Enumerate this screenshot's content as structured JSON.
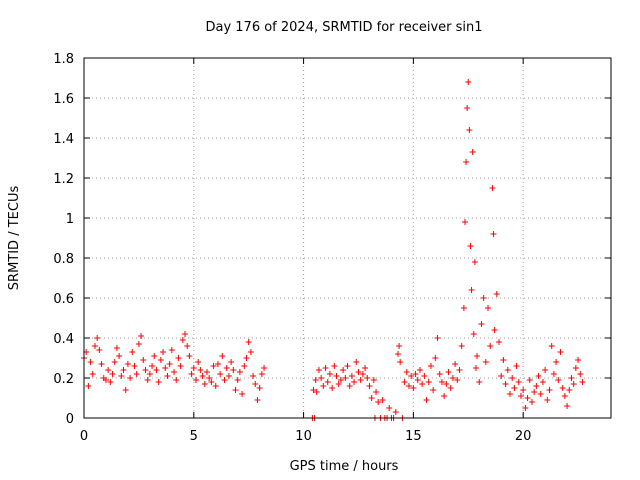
{
  "chart_data": {
    "type": "scatter",
    "title": "Day 176 of 2024, SRMTID for receiver sin1",
    "xlabel": "GPS time / hours",
    "ylabel": "SRMTID / TECUs",
    "xlim": [
      0,
      24
    ],
    "ylim": [
      0,
      1.8
    ],
    "xticks": [
      0,
      5,
      10,
      15,
      20
    ],
    "xtick_labels": [
      "0",
      "5",
      "10",
      "15",
      "20"
    ],
    "yticks": [
      0,
      0.2,
      0.4,
      0.6,
      0.8,
      1.0,
      1.2,
      1.4,
      1.6,
      1.8
    ],
    "ytick_labels": [
      "0",
      "0.2",
      "0.4",
      "0.6",
      "0.8",
      "1",
      "1.2",
      "1.4",
      "1.6",
      "1.8"
    ],
    "grid": true,
    "marker": "+",
    "color": "#ff0000",
    "series": [
      {
        "name": "sin1",
        "points": [
          [
            0.0,
            0.3
          ],
          [
            0.1,
            0.33
          ],
          [
            0.2,
            0.16
          ],
          [
            0.3,
            0.28
          ],
          [
            0.4,
            0.22
          ],
          [
            0.5,
            0.36
          ],
          [
            0.6,
            0.4
          ],
          [
            0.7,
            0.34
          ],
          [
            0.8,
            0.27
          ],
          [
            0.9,
            0.2
          ],
          [
            1.0,
            0.19
          ],
          [
            1.1,
            0.24
          ],
          [
            1.2,
            0.18
          ],
          [
            1.3,
            0.22
          ],
          [
            1.4,
            0.28
          ],
          [
            1.5,
            0.35
          ],
          [
            1.6,
            0.31
          ],
          [
            1.7,
            0.21
          ],
          [
            1.8,
            0.24
          ],
          [
            1.9,
            0.14
          ],
          [
            2.0,
            0.27
          ],
          [
            2.1,
            0.2
          ],
          [
            2.2,
            0.33
          ],
          [
            2.3,
            0.26
          ],
          [
            2.4,
            0.22
          ],
          [
            2.5,
            0.37
          ],
          [
            2.6,
            0.41
          ],
          [
            2.7,
            0.29
          ],
          [
            2.8,
            0.24
          ],
          [
            2.9,
            0.19
          ],
          [
            3.0,
            0.22
          ],
          [
            3.1,
            0.26
          ],
          [
            3.2,
            0.31
          ],
          [
            3.3,
            0.24
          ],
          [
            3.4,
            0.18
          ],
          [
            3.5,
            0.29
          ],
          [
            3.6,
            0.33
          ],
          [
            3.7,
            0.25
          ],
          [
            3.8,
            0.21
          ],
          [
            3.9,
            0.27
          ],
          [
            4.0,
            0.34
          ],
          [
            4.1,
            0.23
          ],
          [
            4.2,
            0.19
          ],
          [
            4.3,
            0.3
          ],
          [
            4.4,
            0.26
          ],
          [
            4.5,
            0.39
          ],
          [
            4.6,
            0.42
          ],
          [
            4.7,
            0.36
          ],
          [
            4.8,
            0.31
          ],
          [
            4.9,
            0.22
          ],
          [
            5.0,
            0.25
          ],
          [
            5.1,
            0.19
          ],
          [
            5.2,
            0.28
          ],
          [
            5.3,
            0.24
          ],
          [
            5.4,
            0.21
          ],
          [
            5.5,
            0.17
          ],
          [
            5.6,
            0.23
          ],
          [
            5.7,
            0.2
          ],
          [
            5.8,
            0.18
          ],
          [
            5.9,
            0.26
          ],
          [
            6.0,
            0.16
          ],
          [
            6.1,
            0.27
          ],
          [
            6.2,
            0.22
          ],
          [
            6.3,
            0.31
          ],
          [
            6.4,
            0.19
          ],
          [
            6.5,
            0.25
          ],
          [
            6.6,
            0.21
          ],
          [
            6.7,
            0.28
          ],
          [
            6.8,
            0.24
          ],
          [
            6.9,
            0.14
          ],
          [
            7.0,
            0.19
          ],
          [
            7.1,
            0.23
          ],
          [
            7.2,
            0.12
          ],
          [
            7.3,
            0.26
          ],
          [
            7.4,
            0.3
          ],
          [
            7.5,
            0.38
          ],
          [
            7.6,
            0.33
          ],
          [
            7.7,
            0.21
          ],
          [
            7.8,
            0.17
          ],
          [
            7.9,
            0.09
          ],
          [
            8.0,
            0.15
          ],
          [
            8.1,
            0.22
          ],
          [
            8.2,
            0.25
          ],
          [
            10.4,
            0.0
          ],
          [
            10.5,
            0.0
          ],
          [
            10.45,
            0.14
          ],
          [
            10.55,
            0.19
          ],
          [
            10.6,
            0.13
          ],
          [
            10.7,
            0.24
          ],
          [
            10.8,
            0.2
          ],
          [
            10.9,
            0.16
          ],
          [
            11.0,
            0.25
          ],
          [
            11.1,
            0.18
          ],
          [
            11.2,
            0.22
          ],
          [
            11.3,
            0.15
          ],
          [
            11.4,
            0.26
          ],
          [
            11.5,
            0.21
          ],
          [
            11.6,
            0.17
          ],
          [
            11.7,
            0.19
          ],
          [
            11.8,
            0.24
          ],
          [
            11.9,
            0.2
          ],
          [
            12.0,
            0.26
          ],
          [
            12.1,
            0.16
          ],
          [
            12.2,
            0.21
          ],
          [
            12.3,
            0.18
          ],
          [
            12.4,
            0.28
          ],
          [
            12.5,
            0.23
          ],
          [
            12.6,
            0.19
          ],
          [
            12.7,
            0.22
          ],
          [
            12.8,
            0.25
          ],
          [
            12.9,
            0.2
          ],
          [
            13.0,
            0.16
          ],
          [
            13.1,
            0.1
          ],
          [
            13.2,
            0.19
          ],
          [
            13.25,
            0.0
          ],
          [
            13.3,
            0.13
          ],
          [
            13.4,
            0.08
          ],
          [
            13.5,
            0.0
          ],
          [
            13.6,
            0.09
          ],
          [
            13.7,
            0.0
          ],
          [
            13.8,
            0.0
          ],
          [
            13.9,
            0.05
          ],
          [
            14.0,
            0.0
          ],
          [
            14.1,
            0.0
          ],
          [
            14.2,
            0.03
          ],
          [
            14.3,
            0.32
          ],
          [
            14.35,
            0.36
          ],
          [
            14.4,
            0.28
          ],
          [
            14.5,
            0.0
          ],
          [
            14.6,
            0.18
          ],
          [
            14.7,
            0.23
          ],
          [
            14.8,
            0.16
          ],
          [
            14.9,
            0.21
          ],
          [
            15.0,
            0.15
          ],
          [
            15.1,
            0.22
          ],
          [
            15.2,
            0.19
          ],
          [
            15.3,
            0.24
          ],
          [
            15.4,
            0.17
          ],
          [
            15.5,
            0.21
          ],
          [
            15.6,
            0.09
          ],
          [
            15.7,
            0.18
          ],
          [
            15.8,
            0.26
          ],
          [
            15.9,
            0.14
          ],
          [
            16.0,
            0.3
          ],
          [
            16.1,
            0.4
          ],
          [
            16.2,
            0.22
          ],
          [
            16.3,
            0.18
          ],
          [
            16.4,
            0.11
          ],
          [
            16.5,
            0.17
          ],
          [
            16.6,
            0.23
          ],
          [
            16.7,
            0.15
          ],
          [
            16.8,
            0.2
          ],
          [
            16.9,
            0.27
          ],
          [
            17.0,
            0.19
          ],
          [
            17.1,
            0.24
          ],
          [
            17.2,
            0.36
          ],
          [
            17.3,
            0.55
          ],
          [
            17.35,
            0.98
          ],
          [
            17.4,
            1.28
          ],
          [
            17.45,
            1.55
          ],
          [
            17.5,
            1.68
          ],
          [
            17.55,
            1.44
          ],
          [
            17.6,
            0.86
          ],
          [
            17.65,
            0.64
          ],
          [
            17.7,
            1.33
          ],
          [
            17.75,
            0.42
          ],
          [
            17.8,
            0.78
          ],
          [
            17.85,
            0.25
          ],
          [
            17.9,
            0.31
          ],
          [
            18.0,
            0.18
          ],
          [
            18.1,
            0.47
          ],
          [
            18.2,
            0.6
          ],
          [
            18.3,
            0.28
          ],
          [
            18.4,
            0.55
          ],
          [
            18.5,
            0.36
          ],
          [
            18.6,
            1.15
          ],
          [
            18.65,
            0.92
          ],
          [
            18.7,
            0.44
          ],
          [
            18.8,
            0.62
          ],
          [
            18.9,
            0.38
          ],
          [
            19.0,
            0.21
          ],
          [
            19.1,
            0.29
          ],
          [
            19.2,
            0.17
          ],
          [
            19.3,
            0.24
          ],
          [
            19.4,
            0.12
          ],
          [
            19.5,
            0.2
          ],
          [
            19.6,
            0.15
          ],
          [
            19.7,
            0.26
          ],
          [
            19.8,
            0.18
          ],
          [
            19.9,
            0.11
          ],
          [
            20.0,
            0.14
          ],
          [
            20.1,
            0.05
          ],
          [
            20.2,
            0.1
          ],
          [
            20.3,
            0.19
          ],
          [
            20.4,
            0.08
          ],
          [
            20.5,
            0.13
          ],
          [
            20.6,
            0.16
          ],
          [
            20.7,
            0.21
          ],
          [
            20.8,
            0.12
          ],
          [
            20.9,
            0.18
          ],
          [
            21.0,
            0.24
          ],
          [
            21.1,
            0.09
          ],
          [
            21.2,
            0.14
          ],
          [
            21.3,
            0.36
          ],
          [
            21.4,
            0.22
          ],
          [
            21.5,
            0.28
          ],
          [
            21.6,
            0.19
          ],
          [
            21.7,
            0.33
          ],
          [
            21.8,
            0.15
          ],
          [
            21.9,
            0.11
          ],
          [
            22.0,
            0.06
          ],
          [
            22.1,
            0.14
          ],
          [
            22.2,
            0.2
          ],
          [
            22.3,
            0.17
          ],
          [
            22.4,
            0.25
          ],
          [
            22.5,
            0.29
          ],
          [
            22.6,
            0.22
          ],
          [
            22.7,
            0.18
          ]
        ]
      }
    ]
  }
}
